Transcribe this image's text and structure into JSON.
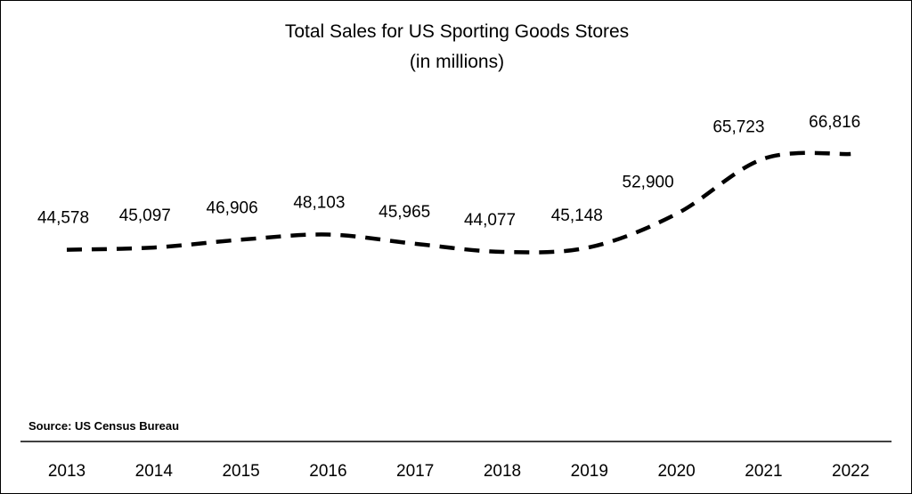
{
  "chart_data": {
    "type": "line",
    "title": "Total Sales for US Sporting Goods Stores",
    "subtitle": "(in millions)",
    "categories": [
      "2013",
      "2014",
      "2015",
      "2016",
      "2017",
      "2018",
      "2019",
      "2020",
      "2021",
      "2022"
    ],
    "values": [
      44578,
      45097,
      46906,
      48103,
      45965,
      44077,
      45148,
      52900,
      65723,
      66816
    ],
    "data_labels": [
      "44,578",
      "45,097",
      "46,906",
      "48,103",
      "45,965",
      "44,077",
      "45,148",
      "52,900",
      "65,723",
      "66,816"
    ],
    "xlabel": "",
    "ylabel": "",
    "ylim": [
      35000,
      75000
    ],
    "grid": false,
    "legend": "none",
    "line_style": "dashed",
    "line_color": "#000000",
    "source_note": "Source: US Census Bureau"
  }
}
